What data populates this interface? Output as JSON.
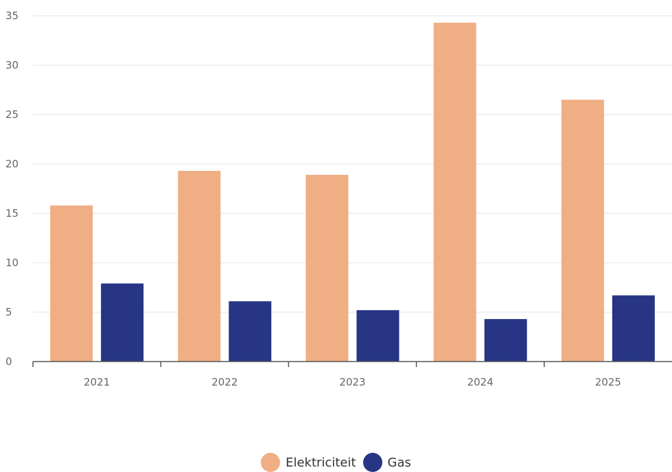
{
  "chart_data": {
    "type": "bar",
    "categories": [
      "2021",
      "2022",
      "2023",
      "2024",
      "2025"
    ],
    "series": [
      {
        "name": "Elektriciteit",
        "values": [
          15.8,
          19.3,
          18.9,
          34.3,
          26.5
        ],
        "color": "#f0ae85"
      },
      {
        "name": "Gas",
        "values": [
          7.9,
          6.1,
          5.2,
          4.3,
          6.7
        ],
        "color": "#273584"
      }
    ],
    "ylim": [
      0,
      35
    ],
    "yticks": [
      0,
      5,
      10,
      15,
      20,
      25,
      30,
      35
    ],
    "grid": true,
    "legend_position": "bottom-center",
    "gridline_color": "#dde3ef",
    "axis_color": "#555555"
  }
}
